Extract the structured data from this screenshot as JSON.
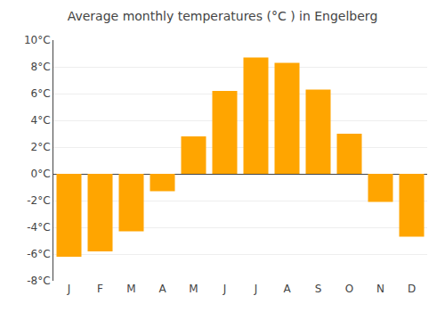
{
  "chart_data": {
    "type": "bar",
    "title": "Average monthly temperatures (°C ) in Engelberg",
    "categories": [
      "J",
      "F",
      "M",
      "A",
      "M",
      "J",
      "J",
      "A",
      "S",
      "O",
      "N",
      "D"
    ],
    "values": [
      -6.2,
      -5.8,
      -4.3,
      -1.3,
      2.8,
      6.2,
      8.7,
      8.3,
      6.3,
      3.0,
      -2.1,
      -4.7
    ],
    "color": "#FFA500",
    "ylim": [
      -8,
      10
    ],
    "yticks": [
      {
        "value": -8,
        "label": "-8°C"
      },
      {
        "value": -6,
        "label": "-6°C"
      },
      {
        "value": -4,
        "label": "-4°C"
      },
      {
        "value": -2,
        "label": "-2°C"
      },
      {
        "value": 0,
        "label": "0°C"
      },
      {
        "value": 2,
        "label": "2°C"
      },
      {
        "value": 4,
        "label": "4°C"
      },
      {
        "value": 6,
        "label": "6°C"
      },
      {
        "value": 8,
        "label": "8°C"
      },
      {
        "value": 10,
        "label": "10°C"
      }
    ],
    "grid": true
  }
}
